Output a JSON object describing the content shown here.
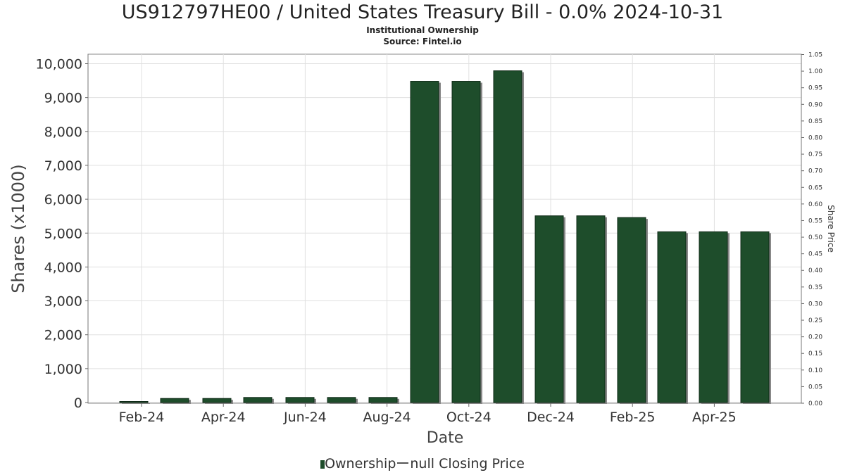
{
  "chart_data": {
    "type": "bar",
    "title": "US912797HE00 / United States Treasury Bill - 0.0% 2024-10-31",
    "subtitle_lines": [
      "Institutional Ownership",
      "Source: Fintel.io"
    ],
    "xlabel": "Date",
    "ylabel": "Shares (x1000)",
    "y2label": "Share Price",
    "ylim": [
      0,
      10300
    ],
    "y2lim": [
      0,
      1.05
    ],
    "yticks": [
      "0",
      "1,000",
      "2,000",
      "3,000",
      "4,000",
      "5,000",
      "6,000",
      "7,000",
      "8,000",
      "9,000",
      "10,000"
    ],
    "y2ticks": [
      "0.00",
      "0.05",
      "0.10",
      "0.15",
      "0.20",
      "0.25",
      "0.30",
      "0.35",
      "0.40",
      "0.45",
      "0.50",
      "0.55",
      "0.60",
      "0.65",
      "0.70",
      "0.75",
      "0.80",
      "0.85",
      "0.90",
      "0.95",
      "1.00",
      "1.05"
    ],
    "xticks": [
      "Feb-24",
      "Apr-24",
      "Jun-24",
      "Aug-24",
      "Oct-24",
      "Dec-24",
      "Feb-25",
      "Apr-25"
    ],
    "grid": true,
    "legend": [
      "Ownership",
      "null Closing Price"
    ],
    "legend_position": "bottom",
    "bar_color": "#1e4d2b",
    "series": [
      {
        "name": "Ownership",
        "values": [
          30,
          120,
          120,
          150,
          150,
          150,
          150,
          9480,
          9480,
          9790,
          5510,
          5510,
          5460,
          5040,
          5040,
          5040
        ]
      }
    ]
  }
}
